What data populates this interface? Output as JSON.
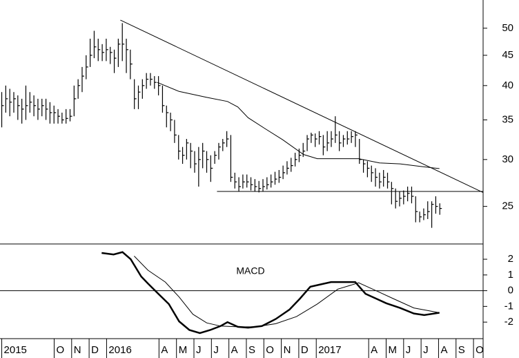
{
  "chart_data": [
    {
      "type": "ohlc",
      "log_scale": true,
      "xlim": [
        -6.1,
        21.55
      ],
      "ylim": [
        21.6,
        55.8
      ],
      "yticks": [
        25,
        30,
        35,
        40,
        45,
        50
      ],
      "color": "#000000",
      "x": [
        -6.0,
        -5.77,
        -5.54,
        -5.31,
        -5.08,
        -4.85,
        -4.62,
        -4.39,
        -4.16,
        -3.93,
        -3.7,
        -3.47,
        -3.24,
        -3.01,
        -2.78,
        -2.55,
        -2.32,
        -2.09,
        -1.86,
        -1.63,
        -1.4,
        -1.17,
        -0.94,
        -0.71,
        -0.48,
        -0.25,
        -0.02,
        0.21,
        0.44,
        0.67,
        0.9,
        1.13,
        1.36,
        1.59,
        1.82,
        2.05,
        2.28,
        2.51,
        2.74,
        2.97,
        3.2,
        3.43,
        3.66,
        3.89,
        4.12,
        4.35,
        4.58,
        4.81,
        5.04,
        5.27,
        5.5,
        5.73,
        5.96,
        6.19,
        6.42,
        6.65,
        6.88,
        7.11,
        7.34,
        7.57,
        7.8,
        8.03,
        8.26,
        8.49,
        8.72,
        8.95,
        9.18,
        9.41,
        9.64,
        9.87,
        10.1,
        10.33,
        10.56,
        10.79,
        11.02,
        11.25,
        11.48,
        11.71,
        11.94,
        12.17,
        12.4,
        12.63,
        12.86,
        13.09,
        13.32,
        13.55,
        13.78,
        14.01,
        14.24,
        14.47,
        14.7,
        14.93,
        15.16,
        15.39,
        15.62,
        15.85,
        16.08,
        16.31,
        16.54,
        16.77,
        17.0,
        17.23,
        17.46,
        17.69,
        17.92,
        18.15,
        18.38,
        18.61,
        18.84,
        19.07
      ],
      "high": [
        39,
        40,
        39.5,
        39,
        38.5,
        38,
        40,
        39,
        38.5,
        38,
        38,
        38,
        37.5,
        37,
        36.5,
        36,
        36.5,
        36.5,
        40,
        41,
        43,
        45,
        48,
        49.5,
        48,
        47,
        48,
        46.5,
        46,
        48,
        51,
        48,
        46,
        41,
        40,
        41,
        42,
        42,
        41.5,
        41.5,
        40,
        37,
        36,
        35,
        33,
        31.5,
        32.5,
        32,
        31,
        31.5,
        32,
        31,
        30.5,
        31,
        32,
        32.5,
        33.5,
        33,
        28.5,
        28,
        28.3,
        28.3,
        28,
        27.8,
        27.6,
        27.8,
        28,
        28.3,
        28.6,
        28.8,
        29.3,
        29.8,
        30.2,
        30.8,
        31.3,
        32,
        33,
        33.3,
        33.2,
        33.5,
        33,
        33.5,
        33.5,
        35.5,
        33.5,
        33,
        33.5,
        33.5,
        33.5,
        32.5,
        30,
        29.8,
        29.3,
        29,
        28.5,
        28.8,
        28.5,
        27.5,
        26.8,
        26.5,
        26.6,
        27,
        27,
        26,
        24.5,
        24.8,
        25.5,
        25.5,
        26,
        25.3
      ],
      "low": [
        34,
        36,
        35.5,
        36,
        35,
        34.5,
        35,
        36,
        35.5,
        35,
        35.5,
        35,
        34.5,
        34.5,
        34.5,
        34.5,
        34.5,
        34.8,
        35.5,
        38,
        39,
        41,
        43,
        44.5,
        44,
        44,
        44,
        43.5,
        42,
        43,
        44,
        42,
        41,
        36.5,
        36.5,
        38,
        39.5,
        40,
        39.5,
        38.5,
        36,
        34,
        33.5,
        32,
        30,
        29.5,
        30,
        29,
        28.5,
        27,
        29,
        28.5,
        27.5,
        29.5,
        30,
        31,
        31.5,
        27.5,
        26.8,
        26.5,
        26.8,
        26.9,
        26.6,
        26.5,
        26.4,
        26.5,
        26.7,
        26.9,
        27.2,
        27.4,
        27.8,
        28.3,
        28.6,
        29.2,
        29.7,
        30.3,
        31,
        32,
        31.5,
        31.8,
        30.5,
        31,
        31.5,
        32,
        31,
        31.5,
        31.8,
        32,
        31.5,
        29.5,
        28.5,
        28,
        27.5,
        27,
        26.8,
        27,
        26.8,
        25.2,
        24.8,
        25,
        25.2,
        25.5,
        25.3,
        23.5,
        23.5,
        23.7,
        23.8,
        23,
        24.3,
        24.2
      ],
      "close": [
        37,
        38,
        37.5,
        38,
        37,
        36.5,
        37,
        37.5,
        37,
        36.5,
        37,
        36.5,
        36,
        36,
        35.5,
        35,
        35.2,
        35.5,
        38,
        40,
        41.5,
        43,
        45,
        46.5,
        46,
        45.5,
        46,
        45.5,
        44.5,
        47,
        47,
        46,
        43.5,
        38,
        39,
        40,
        41,
        41,
        40.5,
        40,
        37,
        36,
        35,
        33,
        31,
        30.5,
        32,
        31,
        29.5,
        30,
        31,
        30,
        29,
        30.5,
        31.5,
        32,
        32.5,
        28,
        27.5,
        27,
        27.5,
        27.5,
        27.2,
        27,
        26.8,
        27,
        27.2,
        27.5,
        27.8,
        28,
        28.5,
        29,
        29.3,
        30,
        30.5,
        31,
        32.5,
        33,
        32.5,
        32.8,
        31.5,
        32,
        32.5,
        33,
        32,
        32.5,
        32.5,
        32.8,
        33,
        30,
        29.5,
        29,
        28.5,
        28,
        27.5,
        28,
        27.5,
        26.8,
        25.5,
        25.8,
        26,
        26.3,
        26,
        24.5,
        24,
        24.2,
        24.5,
        25.2,
        25,
        24.8
      ],
      "lines": [
        {
          "x": [
            2.9,
            4.15,
            5.73,
            6.92,
            7.51,
            8.1,
            9.09,
            10.08,
            11.27,
            12.06,
            13.24,
            14.43,
            15.62,
            16.8,
            17.99,
            19.05
          ],
          "values": [
            40.5,
            39.1,
            38.2,
            37.6,
            36.8,
            35.3,
            33.8,
            32.4,
            30.6,
            30.1,
            30.1,
            30.1,
            29.6,
            29.5,
            29.2,
            28.96
          ]
        },
        {
          "x": [
            0.79,
            21.54
          ],
          "values": [
            51.6,
            26.4
          ]
        },
        {
          "x": [
            6.32,
            21.54
          ],
          "values": [
            26.5,
            26.5
          ]
        }
      ]
    },
    {
      "type": "line",
      "annotation": "MACD",
      "zero_line": true,
      "xlim": [
        -6.1,
        21.55
      ],
      "ylim": [
        -3.05,
        2.97
      ],
      "yticks": [
        -2,
        -1,
        0,
        1,
        2
      ],
      "xticks": [
        {
          "value": -6,
          "label": "2015"
        },
        {
          "value": -3,
          "label": "O"
        },
        {
          "value": -2,
          "label": "N"
        },
        {
          "value": -1,
          "label": "D"
        },
        {
          "value": 0,
          "label": "2016"
        },
        {
          "value": 3,
          "label": "A"
        },
        {
          "value": 4,
          "label": "M"
        },
        {
          "value": 5,
          "label": "J"
        },
        {
          "value": 6,
          "label": "J"
        },
        {
          "value": 7,
          "label": "A"
        },
        {
          "value": 8,
          "label": "S"
        },
        {
          "value": 9,
          "label": "O"
        },
        {
          "value": 10,
          "label": "N"
        },
        {
          "value": 11,
          "label": "D"
        },
        {
          "value": 12,
          "label": "2017"
        },
        {
          "value": 15,
          "label": "A"
        },
        {
          "value": 16,
          "label": "M"
        },
        {
          "value": 17,
          "label": "J"
        },
        {
          "value": 18,
          "label": "J"
        },
        {
          "value": 19,
          "label": "A"
        },
        {
          "value": 20,
          "label": "S"
        },
        {
          "value": 21,
          "label": "O"
        }
      ],
      "series": [
        {
          "color": "#000000",
          "width": 2.5,
          "x": [
            -0.28,
            0.4,
            0.91,
            1.38,
            1.98,
            2.37,
            2.96,
            3.56,
            4.15,
            4.74,
            5.34,
            5.93,
            6.52,
            6.92,
            7.51,
            8.1,
            8.89,
            9.68,
            10.47,
            11.07,
            11.66,
            12.25,
            12.85,
            13.64,
            14.23,
            14.82,
            15.42,
            16.01,
            16.8,
            17.59,
            18.18,
            19.05
          ],
          "values": [
            2.4,
            2.3,
            2.45,
            2.0,
            0.9,
            0.45,
            -0.2,
            -0.85,
            -1.95,
            -2.5,
            -2.7,
            -2.5,
            -2.25,
            -2.0,
            -2.3,
            -2.35,
            -2.25,
            -1.8,
            -1.2,
            -0.5,
            0.25,
            0.4,
            0.55,
            0.55,
            0.55,
            -0.2,
            -0.5,
            -0.8,
            -1.1,
            -1.45,
            -1.55,
            -1.4
          ]
        },
        {
          "color": "#000000",
          "width": 1,
          "x": [
            1.58,
            2.37,
            3.36,
            4.15,
            4.94,
            5.73,
            6.52,
            7.51,
            8.5,
            9.68,
            10.87,
            12.06,
            13.24,
            14.43,
            15.42,
            16.4,
            17.59,
            18.58,
            19.05
          ],
          "values": [
            2.2,
            1.3,
            0.55,
            -0.4,
            -1.5,
            -2.05,
            -2.25,
            -2.3,
            -2.3,
            -2.1,
            -1.65,
            -0.85,
            0.1,
            0.5,
            0.0,
            -0.5,
            -1.1,
            -1.3,
            -1.4
          ]
        }
      ]
    }
  ]
}
